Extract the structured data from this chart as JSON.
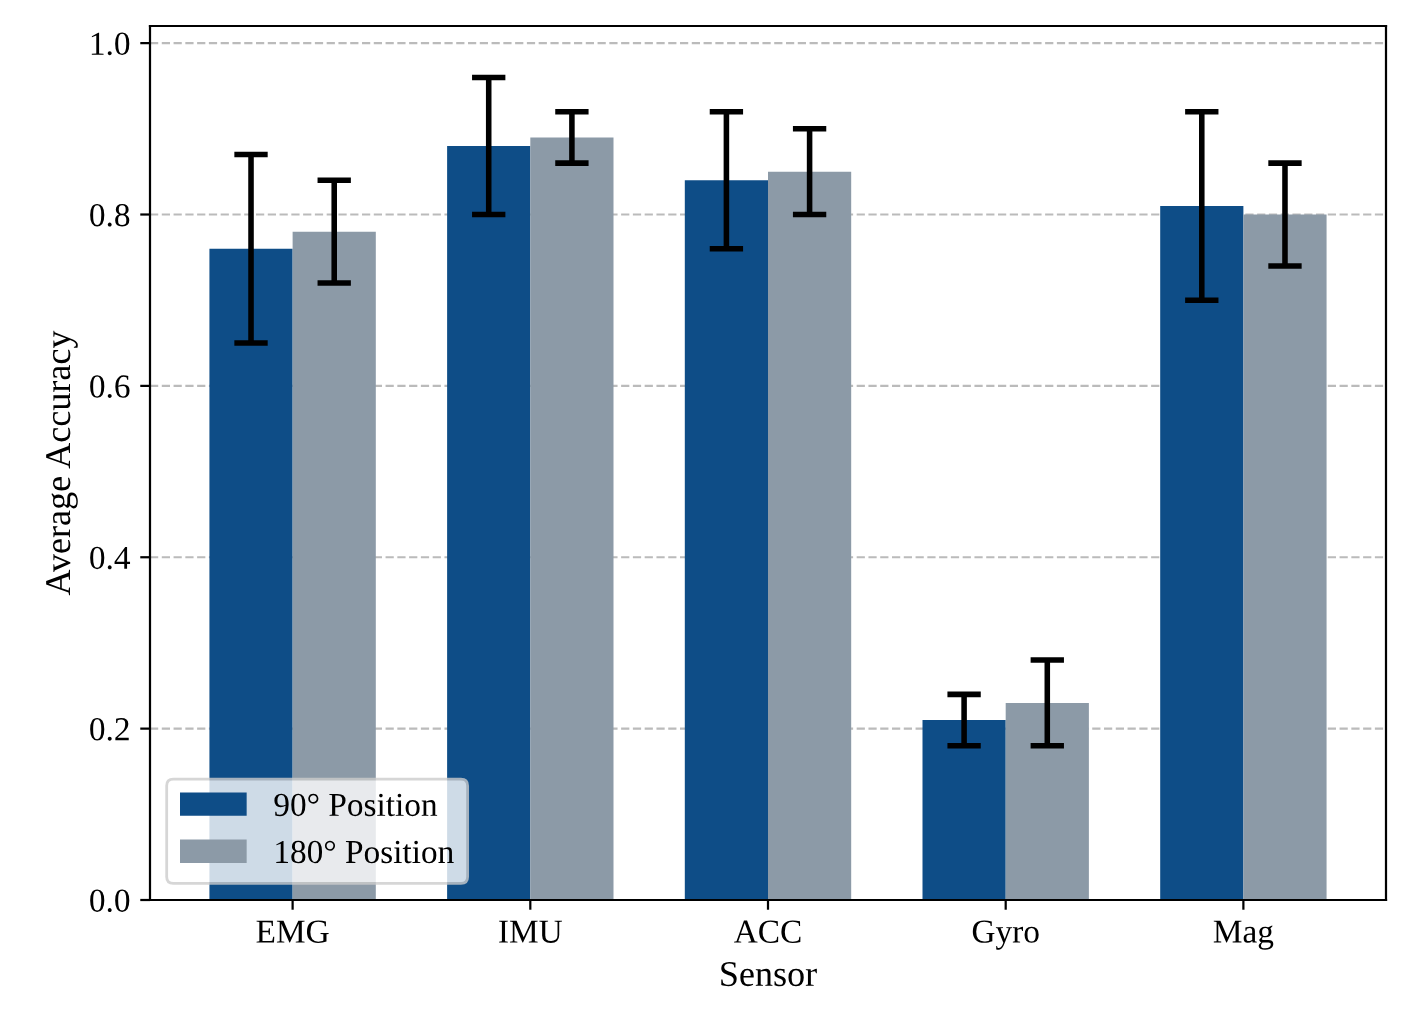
{
  "chart_data": {
    "type": "bar",
    "xlabel": "Sensor",
    "ylabel": "Average Accuracy",
    "categories": [
      "EMG",
      "IMU",
      "ACC",
      "Gyro",
      "Mag"
    ],
    "series": [
      {
        "name": "90° Position",
        "color": "#0e4d87",
        "values": [
          0.76,
          0.88,
          0.84,
          0.21,
          0.81
        ],
        "errors": [
          [
            0.65,
            0.87
          ],
          [
            0.8,
            0.96
          ],
          [
            0.76,
            0.92
          ],
          [
            0.18,
            0.24
          ],
          [
            0.7,
            0.92
          ]
        ]
      },
      {
        "name": "180° Position",
        "color": "#8c9aa7",
        "values": [
          0.78,
          0.89,
          0.85,
          0.23,
          0.8
        ],
        "errors": [
          [
            0.72,
            0.84
          ],
          [
            0.86,
            0.92
          ],
          [
            0.8,
            0.9
          ],
          [
            0.18,
            0.28
          ],
          [
            0.74,
            0.86
          ]
        ]
      }
    ],
    "ylim": [
      0,
      1.02
    ],
    "yticks": [
      {
        "value": 0,
        "label": "0.0"
      },
      0.2,
      0.4,
      0.6,
      0.8,
      {
        "value": 1,
        "label": "1.0"
      }
    ],
    "grid": "y",
    "legend": "bottom left"
  }
}
